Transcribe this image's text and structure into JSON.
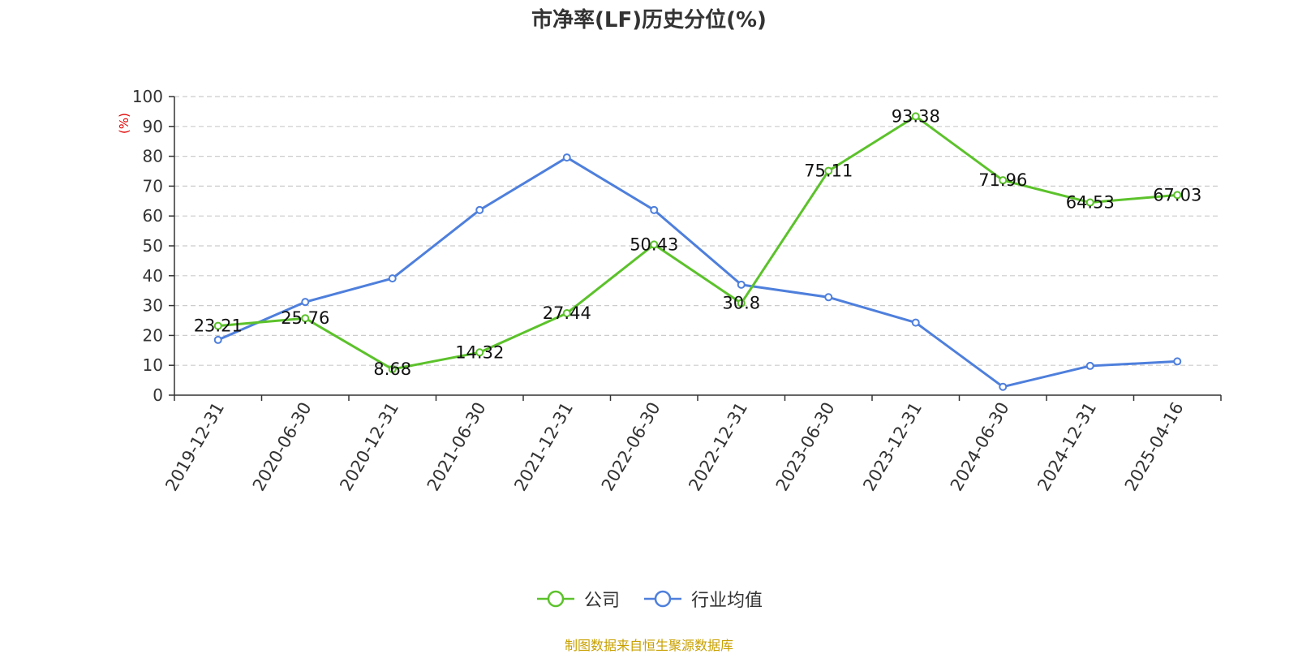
{
  "chart_data": {
    "type": "line",
    "title": "市净率(LF)历史分位(%)",
    "ylabel": "(%)",
    "ylim": [
      0,
      100
    ],
    "yticks": [
      0,
      10,
      20,
      30,
      40,
      50,
      60,
      70,
      80,
      90,
      100
    ],
    "grid": true,
    "legend_position": "bottom",
    "categories": [
      "2019-12-31",
      "2020-06-30",
      "2020-12-31",
      "2021-06-30",
      "2021-12-31",
      "2022-06-30",
      "2022-12-31",
      "2023-06-30",
      "2023-12-31",
      "2024-06-30",
      "2024-12-31",
      "2025-04-16"
    ],
    "series": [
      {
        "name": "公司",
        "color": "#5cc22b",
        "values": [
          23.21,
          25.76,
          8.68,
          14.32,
          27.44,
          50.43,
          30.8,
          75.11,
          93.38,
          71.96,
          64.53,
          67.03
        ],
        "labels": [
          "23.21",
          "25.76",
          "8.68",
          "14.32",
          "27.44",
          "50.43",
          "30.8",
          "75.11",
          "93.38",
          "71.96",
          "64.53",
          "67.03"
        ]
      },
      {
        "name": "行业均值",
        "color": "#4e7fdc",
        "values": [
          18.5,
          31.2,
          39.1,
          62.0,
          79.6,
          62.0,
          37.0,
          32.8,
          24.3,
          2.8,
          9.8,
          11.3
        ]
      }
    ]
  },
  "source_note": "制图数据来自恒生聚源数据库"
}
